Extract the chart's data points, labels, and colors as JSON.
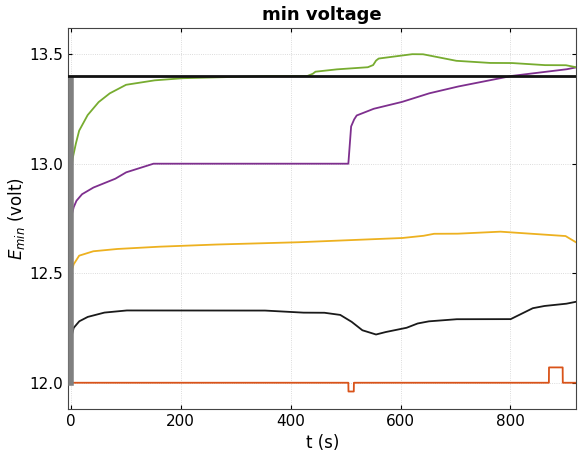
{
  "title": "min voltage",
  "xlabel": "t (s)",
  "ylabel": "$E_{min}$ (volt)",
  "xlim": [
    -5,
    920
  ],
  "ylim": [
    11.88,
    13.62
  ],
  "yticks": [
    12.0,
    12.5,
    13.0,
    13.5
  ],
  "xticks": [
    0,
    200,
    400,
    600,
    800
  ],
  "hline_y": 13.4,
  "hline_color": "#111111",
  "bg_color": "#ffffff",
  "grid_color": "#d0d0d0",
  "line_colors": {
    "red": "#d95319",
    "black": "#1a1a1a",
    "yellow": "#edb120",
    "purple": "#7e2f8e",
    "green": "#77ac30",
    "gray": "#808080"
  },
  "title_fontsize": 13,
  "label_fontsize": 12,
  "tick_fontsize": 11
}
